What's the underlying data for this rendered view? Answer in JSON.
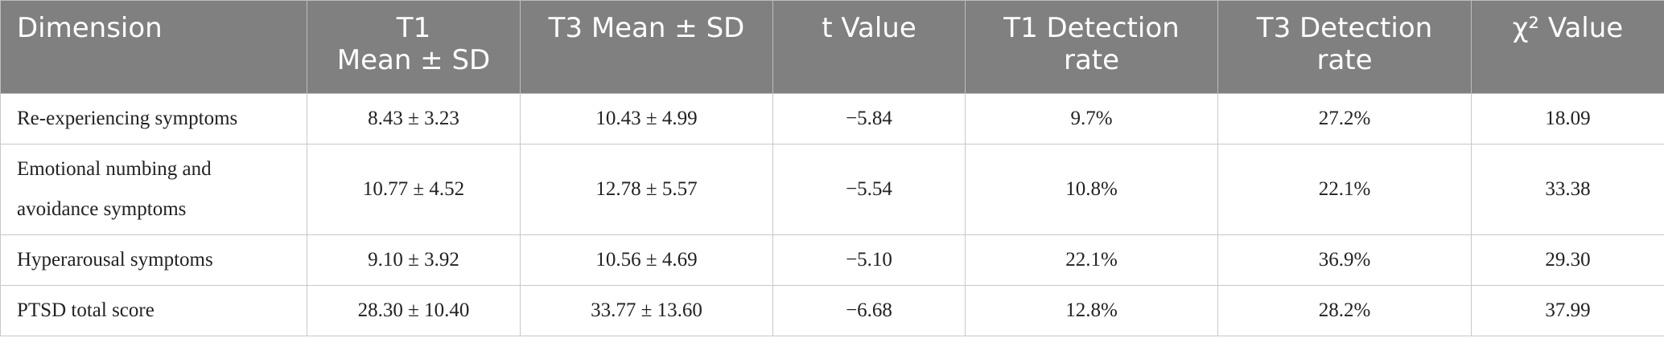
{
  "table": {
    "header": [
      [
        "Dimension"
      ],
      [
        "T1",
        "Mean ± SD"
      ],
      [
        "T3 Mean ± SD"
      ],
      [
        "t Value"
      ],
      [
        "T1 Detection",
        "rate"
      ],
      [
        "T3 Detection",
        "rate"
      ],
      [
        "χ² Value"
      ]
    ],
    "rows": [
      [
        "Re-experiencing symptoms",
        "8.43 ± 3.23",
        "10.43 ± 4.99",
        "−5.84",
        "9.7%",
        "27.2%",
        "18.09"
      ],
      [
        "Emotional numbing and avoidance symptoms",
        "10.77 ± 4.52",
        "12.78 ± 5.57",
        "−5.54",
        "10.8%",
        "22.1%",
        "33.38"
      ],
      [
        "Hyperarousal symptoms",
        "9.10 ± 3.92",
        "10.56 ± 4.69",
        "−5.10",
        "22.1%",
        "36.9%",
        "29.30"
      ],
      [
        "PTSD total score",
        "28.30 ± 10.40",
        "33.77 ± 13.60",
        "−6.68",
        "12.8%",
        "28.2%",
        "37.99"
      ]
    ]
  }
}
